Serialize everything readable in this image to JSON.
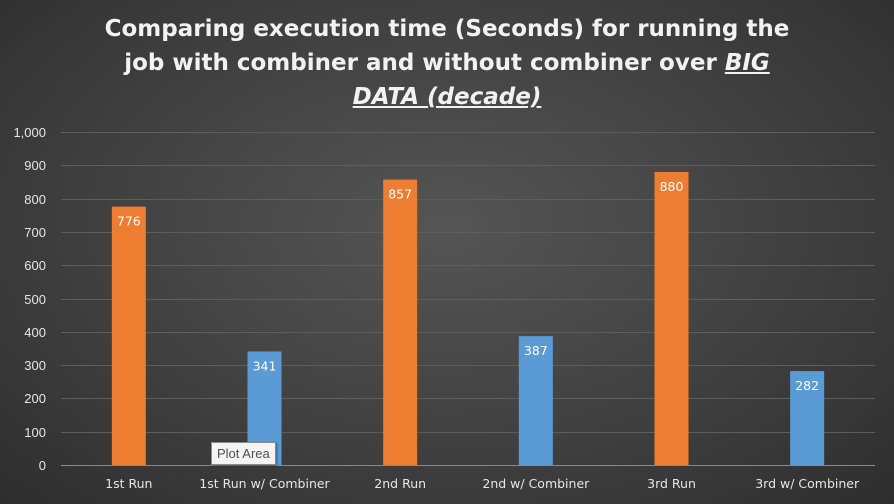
{
  "chart_data": {
    "type": "bar",
    "title": "Comparing execution time (Seconds) for running the job with combiner and without combiner over BIG DATA (decade)",
    "title_parts": {
      "line1": "Comparing execution time (Seconds) for running the",
      "line2_plain": "job with combiner and without combiner over ",
      "line2_emph": "BIG",
      "line3_emph": "DATA (decade)"
    },
    "categories": [
      "1st Run",
      "1st Run w/ Combiner",
      "2nd Run",
      "2nd w/ Combiner",
      "3rd Run",
      "3rd w/ Combiner"
    ],
    "values": [
      776,
      341,
      857,
      387,
      880,
      282
    ],
    "bar_colors": [
      "#ed7d31",
      "#5b9bd5",
      "#ed7d31",
      "#5b9bd5",
      "#ed7d31",
      "#5b9bd5"
    ],
    "ylim": [
      0,
      1000
    ],
    "yticks": [
      0,
      100,
      200,
      300,
      400,
      500,
      600,
      700,
      800,
      900,
      1000
    ],
    "ytick_labels": [
      "0",
      "100",
      "200",
      "300",
      "400",
      "500",
      "600",
      "700",
      "800",
      "900",
      "1,000"
    ],
    "xlabel": "",
    "ylabel": "",
    "grid": true,
    "legend": "none"
  },
  "tooltip": {
    "text": "Plot Area"
  },
  "colors": {
    "background": "#404040",
    "gridline": "#5e5e5e",
    "text": "#e6e6e6"
  }
}
